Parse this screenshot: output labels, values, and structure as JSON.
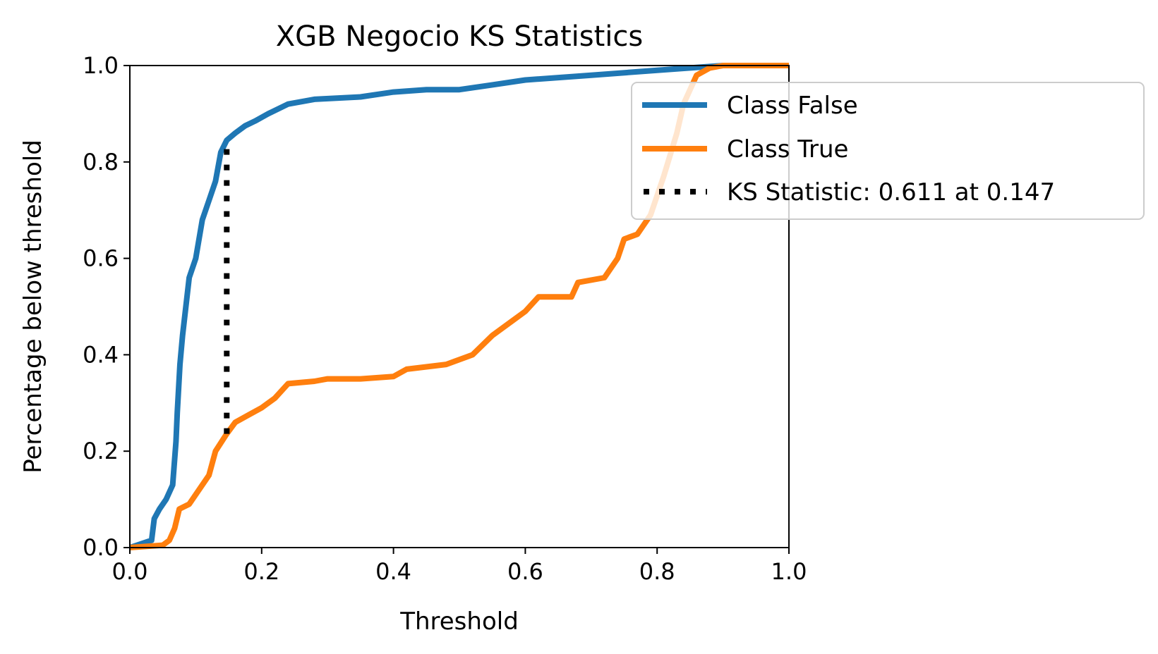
{
  "chart_data": {
    "type": "line",
    "title": "XGB Negocio KS Statistics",
    "xlabel": "Threshold",
    "ylabel": "Percentage below threshold",
    "xlim": [
      0,
      1
    ],
    "ylim": [
      0,
      1
    ],
    "x_ticks": [
      "0.0",
      "0.2",
      "0.4",
      "0.6",
      "0.8",
      "1.0"
    ],
    "y_ticks": [
      "0.0",
      "0.2",
      "0.4",
      "0.6",
      "0.8",
      "1.0"
    ],
    "grid": false,
    "legend_position": "top-right",
    "series": [
      {
        "name": "Class False",
        "color": "#1f77b4",
        "points": [
          [
            0.0,
            0.0
          ],
          [
            0.033,
            0.015
          ],
          [
            0.037,
            0.06
          ],
          [
            0.045,
            0.08
          ],
          [
            0.055,
            0.1
          ],
          [
            0.065,
            0.13
          ],
          [
            0.07,
            0.22
          ],
          [
            0.072,
            0.28
          ],
          [
            0.076,
            0.38
          ],
          [
            0.08,
            0.44
          ],
          [
            0.09,
            0.56
          ],
          [
            0.1,
            0.6
          ],
          [
            0.11,
            0.68
          ],
          [
            0.12,
            0.72
          ],
          [
            0.13,
            0.76
          ],
          [
            0.138,
            0.82
          ],
          [
            0.147,
            0.845
          ],
          [
            0.16,
            0.86
          ],
          [
            0.175,
            0.875
          ],
          [
            0.19,
            0.885
          ],
          [
            0.21,
            0.9
          ],
          [
            0.24,
            0.92
          ],
          [
            0.28,
            0.93
          ],
          [
            0.35,
            0.935
          ],
          [
            0.4,
            0.945
          ],
          [
            0.45,
            0.95
          ],
          [
            0.5,
            0.95
          ],
          [
            0.55,
            0.96
          ],
          [
            0.6,
            0.97
          ],
          [
            0.7,
            0.98
          ],
          [
            0.8,
            0.99
          ],
          [
            0.85,
            0.995
          ],
          [
            0.9,
            1.0
          ],
          [
            1.0,
            1.0
          ]
        ]
      },
      {
        "name": "Class True",
        "color": "#ff7f0e",
        "points": [
          [
            0.0,
            0.0
          ],
          [
            0.05,
            0.005
          ],
          [
            0.06,
            0.015
          ],
          [
            0.068,
            0.04
          ],
          [
            0.075,
            0.08
          ],
          [
            0.09,
            0.09
          ],
          [
            0.1,
            0.11
          ],
          [
            0.11,
            0.13
          ],
          [
            0.12,
            0.15
          ],
          [
            0.13,
            0.2
          ],
          [
            0.147,
            0.236
          ],
          [
            0.16,
            0.26
          ],
          [
            0.18,
            0.275
          ],
          [
            0.2,
            0.29
          ],
          [
            0.22,
            0.31
          ],
          [
            0.24,
            0.34
          ],
          [
            0.28,
            0.345
          ],
          [
            0.3,
            0.35
          ],
          [
            0.35,
            0.35
          ],
          [
            0.4,
            0.355
          ],
          [
            0.42,
            0.37
          ],
          [
            0.48,
            0.38
          ],
          [
            0.5,
            0.39
          ],
          [
            0.52,
            0.4
          ],
          [
            0.55,
            0.44
          ],
          [
            0.58,
            0.47
          ],
          [
            0.6,
            0.49
          ],
          [
            0.62,
            0.52
          ],
          [
            0.67,
            0.52
          ],
          [
            0.68,
            0.55
          ],
          [
            0.72,
            0.56
          ],
          [
            0.74,
            0.6
          ],
          [
            0.75,
            0.64
          ],
          [
            0.77,
            0.65
          ],
          [
            0.79,
            0.69
          ],
          [
            0.81,
            0.77
          ],
          [
            0.83,
            0.86
          ],
          [
            0.84,
            0.92
          ],
          [
            0.86,
            0.98
          ],
          [
            0.88,
            0.995
          ],
          [
            0.9,
            1.0
          ],
          [
            1.0,
            1.0
          ]
        ]
      }
    ],
    "ks": {
      "name": "KS Statistic: 0.611 at 0.147",
      "color": "#000000",
      "x": 0.147,
      "y_low": 0.236,
      "y_high": 0.847
    }
  }
}
